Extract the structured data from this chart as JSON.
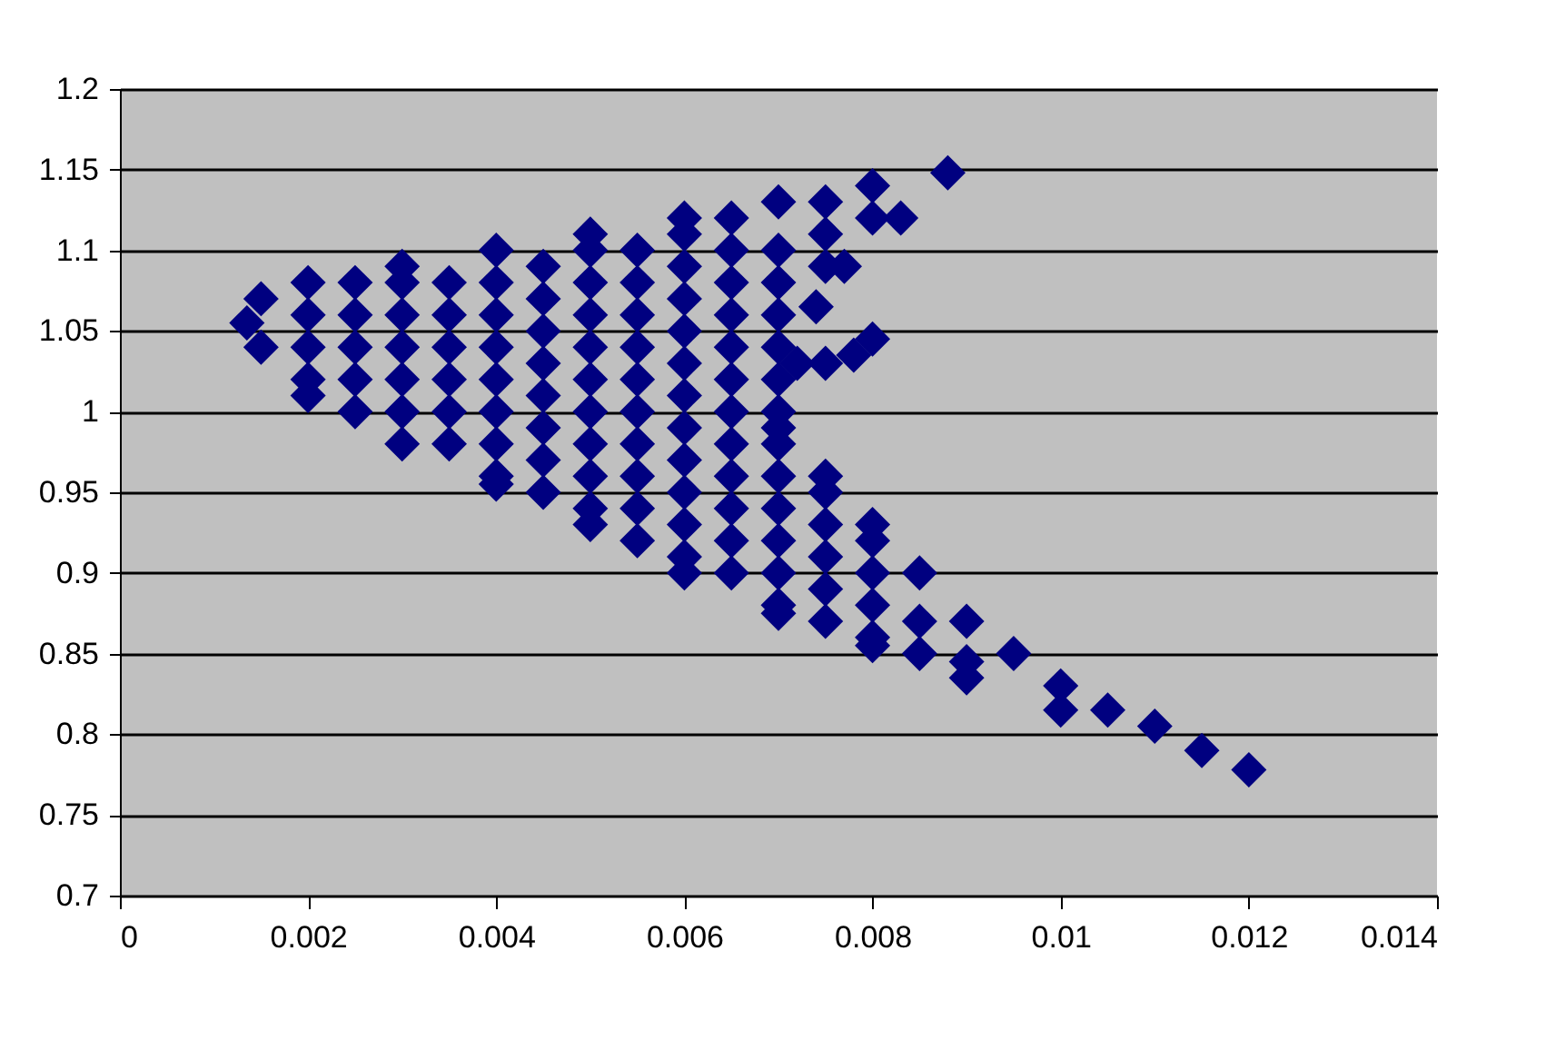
{
  "chart_data": {
    "type": "scatter",
    "marker": "diamond",
    "grid": "y",
    "xlim": [
      0,
      0.014
    ],
    "xticks": [
      0,
      0.002,
      0.004,
      0.006,
      0.008,
      0.01,
      0.012,
      0.014
    ],
    "ylim": [
      0.7,
      1.2
    ],
    "yticks": [
      0.7,
      0.75,
      0.8,
      0.85,
      0.9,
      0.95,
      1,
      1.05,
      1.1,
      1.15,
      1.2
    ],
    "series": [
      {
        "color": "#000080",
        "x": [
          0.00135,
          0.0015,
          0.002,
          0.003,
          0.004,
          0.005,
          0.006,
          0.007,
          0.008,
          0.0088,
          0.0083,
          0.0077,
          0.0074,
          0.008,
          0.0078,
          0.0072,
          0.007,
          0.0075,
          0.008,
          0.0085,
          0.009,
          0.0095,
          0.01,
          0.0105,
          0.011,
          0.0115,
          0.012,
          0.0015,
          0.002,
          0.003,
          0.004,
          0.005,
          0.006,
          0.007,
          0.008,
          0.009,
          0.01,
          0.002,
          0.002,
          0.002,
          0.0025,
          0.0025,
          0.0025,
          0.0025,
          0.0025,
          0.003,
          0.003,
          0.003,
          0.003,
          0.003,
          0.0035,
          0.0035,
          0.0035,
          0.0035,
          0.0035,
          0.0035,
          0.004,
          0.004,
          0.004,
          0.004,
          0.004,
          0.004,
          0.004,
          0.0045,
          0.0045,
          0.0045,
          0.0045,
          0.0045,
          0.0045,
          0.0045,
          0.0045,
          0.005,
          0.005,
          0.005,
          0.005,
          0.005,
          0.005,
          0.005,
          0.005,
          0.005,
          0.0055,
          0.0055,
          0.0055,
          0.0055,
          0.0055,
          0.0055,
          0.0055,
          0.0055,
          0.0055,
          0.0055,
          0.006,
          0.006,
          0.006,
          0.006,
          0.006,
          0.006,
          0.006,
          0.006,
          0.006,
          0.006,
          0.006,
          0.0065,
          0.0065,
          0.0065,
          0.0065,
          0.0065,
          0.0065,
          0.0065,
          0.0065,
          0.0065,
          0.0065,
          0.0065,
          0.0065,
          0.007,
          0.007,
          0.007,
          0.007,
          0.007,
          0.007,
          0.007,
          0.007,
          0.007,
          0.007,
          0.007,
          0.007,
          0.0075,
          0.0075,
          0.0075,
          0.0075,
          0.0075,
          0.0075,
          0.0075,
          0.0075,
          0.0075,
          0.008,
          0.008,
          0.008,
          0.008,
          0.008,
          0.0085,
          0.0085,
          0.009
        ],
        "values": [
          1.055,
          1.07,
          1.08,
          1.09,
          1.1,
          1.11,
          1.12,
          1.13,
          1.14,
          1.148,
          1.12,
          1.09,
          1.065,
          1.045,
          1.035,
          1.03,
          0.99,
          0.96,
          0.93,
          0.9,
          0.87,
          0.85,
          0.83,
          0.815,
          0.805,
          0.79,
          0.778,
          1.04,
          1.01,
          0.98,
          0.955,
          0.93,
          0.9,
          0.875,
          0.855,
          0.835,
          0.815,
          1.02,
          1.04,
          1.06,
          1.0,
          1.02,
          1.04,
          1.06,
          1.08,
          1.0,
          1.02,
          1.04,
          1.06,
          1.08,
          0.98,
          1.0,
          1.02,
          1.04,
          1.06,
          1.08,
          0.96,
          0.98,
          1.0,
          1.02,
          1.04,
          1.06,
          1.08,
          0.95,
          0.97,
          0.99,
          1.01,
          1.03,
          1.05,
          1.07,
          1.09,
          0.94,
          0.96,
          0.98,
          1.0,
          1.02,
          1.04,
          1.06,
          1.08,
          1.1,
          0.92,
          0.94,
          0.96,
          0.98,
          1.0,
          1.02,
          1.04,
          1.06,
          1.08,
          1.1,
          0.91,
          0.93,
          0.95,
          0.97,
          0.99,
          1.01,
          1.03,
          1.05,
          1.07,
          1.09,
          1.11,
          0.9,
          0.92,
          0.94,
          0.96,
          0.98,
          1.0,
          1.02,
          1.04,
          1.06,
          1.08,
          1.1,
          1.12,
          0.88,
          0.9,
          0.92,
          0.94,
          0.96,
          0.98,
          1.0,
          1.02,
          1.04,
          1.06,
          1.08,
          1.1,
          0.87,
          0.89,
          0.91,
          0.93,
          0.95,
          1.03,
          1.09,
          1.11,
          1.13,
          0.86,
          0.88,
          0.9,
          0.92,
          1.12,
          0.85,
          0.87,
          0.845
        ]
      }
    ]
  }
}
